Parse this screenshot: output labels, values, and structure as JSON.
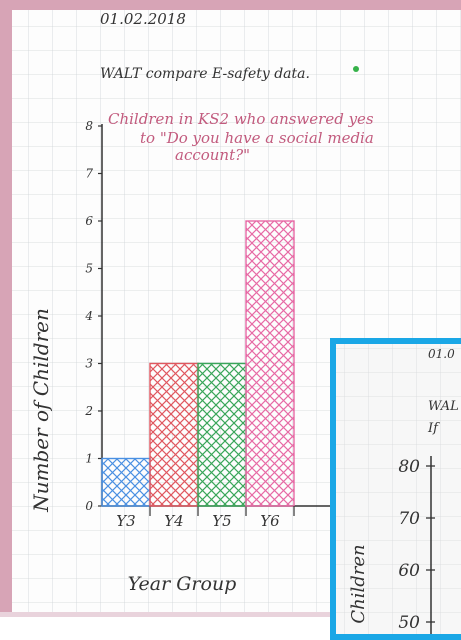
{
  "header": {
    "date": "01.02.2018",
    "walt": "WALT compare E-safety data."
  },
  "chart_data": {
    "type": "bar",
    "title": "Children in KS2 who answered yes to \"Do you have a social media account?\"",
    "xlabel": "Year Group",
    "ylabel": "Number of Children",
    "categories": [
      "Y3",
      "Y4",
      "Y5",
      "Y6"
    ],
    "values": [
      1,
      3,
      3,
      6
    ],
    "ylim": [
      0,
      8
    ],
    "yticks": [
      "0",
      "1",
      "2",
      "3",
      "4",
      "5",
      "6",
      "7",
      "8"
    ],
    "bar_colors": [
      "#4a90e2",
      "#e0575f",
      "#3aa65a",
      "#e76aa5"
    ],
    "grid": true
  },
  "inset": {
    "date": "01.0",
    "walt": "WAL",
    "line2": "If",
    "ylabel": "Children",
    "yticks": [
      "80",
      "70",
      "60",
      "50"
    ]
  }
}
